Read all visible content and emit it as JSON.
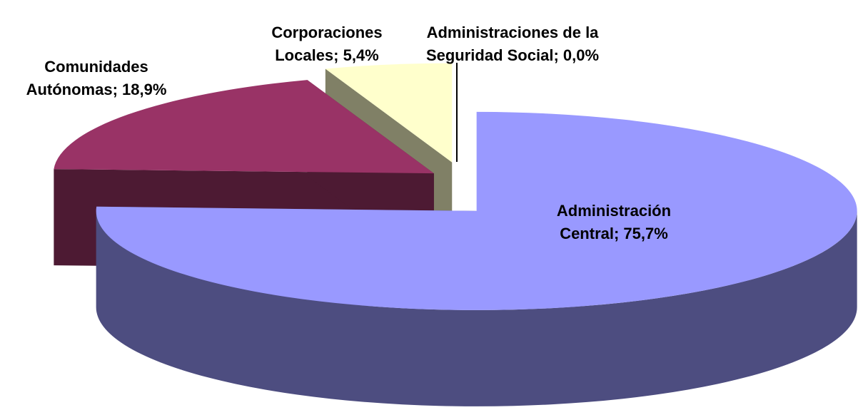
{
  "chart_data": {
    "type": "pie3d",
    "categories": [
      "Administración Central; 75,7%",
      "Comunidades Autónomas; 18,9%",
      "Corporaciones Locales; 5,4%",
      "Administraciones de la Seguridad Social; 0,0%"
    ],
    "values": [
      75.7,
      18.9,
      5.4,
      0.0
    ],
    "colors": [
      "#9999ff",
      "#993366",
      "#ffffcc",
      "#000000"
    ]
  }
}
